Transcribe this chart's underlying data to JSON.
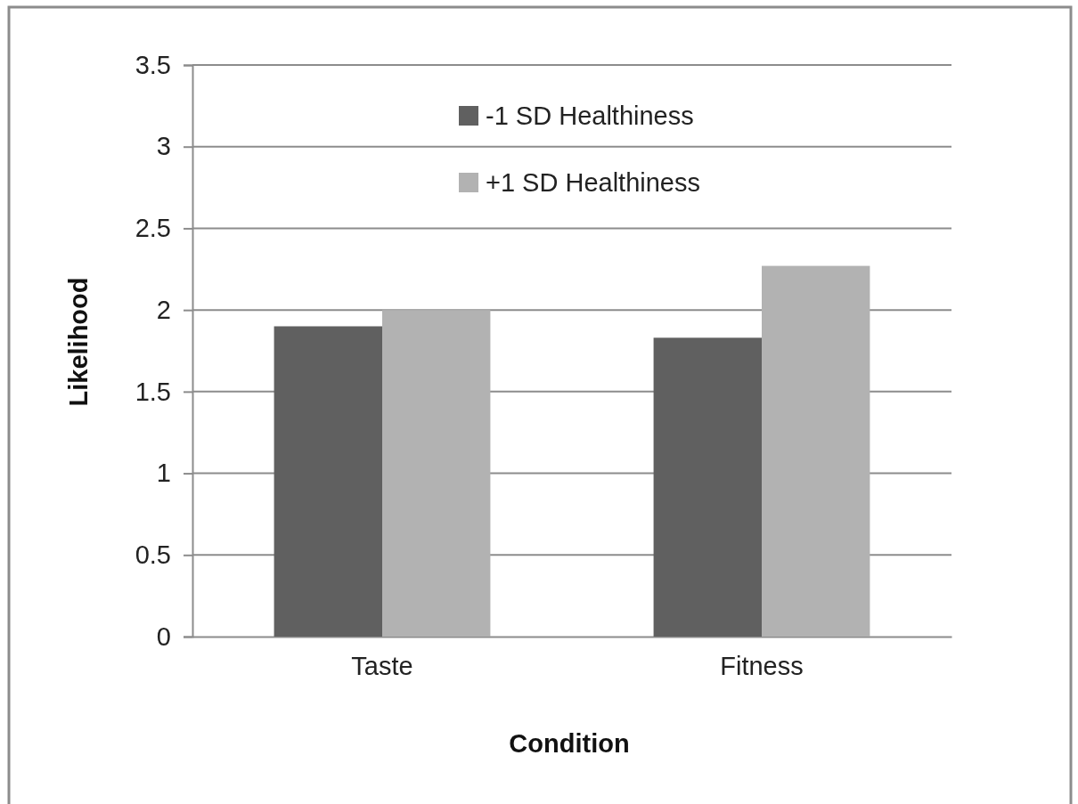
{
  "chart_data": {
    "type": "bar",
    "xlabel": "Condition",
    "ylabel": "Likelihood",
    "categories": [
      "Taste",
      "Fitness"
    ],
    "series": [
      {
        "name": "-1 SD Healthiness",
        "color": "#606060",
        "values": [
          1.9,
          1.83
        ]
      },
      {
        "name": "+1 SD Healthiness",
        "color": "#b2b2b2",
        "values": [
          2.0,
          2.27
        ]
      }
    ],
    "ylim": [
      0,
      3.5
    ],
    "yticks": [
      0,
      0.5,
      1,
      1.5,
      2,
      2.5,
      3,
      3.5
    ],
    "grid": "y",
    "legend": "top"
  }
}
